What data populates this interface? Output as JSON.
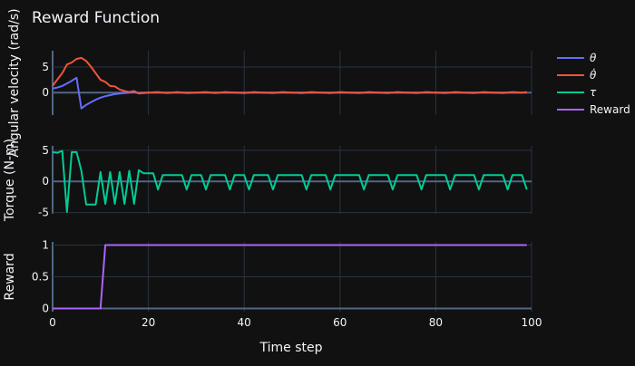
{
  "chart_data": {
    "type": "line",
    "title": "Reward Function",
    "xlabel": "Time step",
    "xlim": [
      0,
      100
    ],
    "x_ticks": [
      0,
      20,
      40,
      60,
      80,
      100
    ],
    "legend_position": "right",
    "legend": [
      {
        "name": "θ",
        "color": "#636efa"
      },
      {
        "name": "θ̇",
        "color": "#EF553B"
      },
      {
        "name": "τ",
        "color": "#00cc96"
      },
      {
        "name": "Reward",
        "color": "#ab63fa"
      }
    ],
    "panels": [
      {
        "ylabel": "Angular velocity (rad/s)",
        "ylim": [
          -4.4,
          8.2
        ],
        "y_ticks": [
          0,
          5
        ],
        "series": [
          {
            "name": "θ",
            "color": "#636efa",
            "points": [
              [
                0,
                0.8
              ],
              [
                1,
                1.0
              ],
              [
                2,
                1.3
              ],
              [
                3,
                1.8
              ],
              [
                4,
                2.3
              ],
              [
                5,
                2.9
              ],
              [
                6,
                -3.1
              ],
              [
                7,
                -2.4
              ],
              [
                8,
                -1.9
              ],
              [
                9,
                -1.4
              ],
              [
                10,
                -1.0
              ],
              [
                11,
                -0.7
              ],
              [
                12,
                -0.5
              ],
              [
                13,
                -0.3
              ],
              [
                14,
                -0.2
              ],
              [
                15,
                -0.1
              ],
              [
                16,
                0.0
              ],
              [
                17,
                0.1
              ],
              [
                18,
                -0.1
              ],
              [
                19,
                0.0
              ],
              [
                20,
                0.0
              ],
              [
                30,
                0.0
              ],
              [
                40,
                0.0
              ],
              [
                50,
                0.0
              ],
              [
                60,
                0.0
              ],
              [
                70,
                0.0
              ],
              [
                80,
                0.0
              ],
              [
                90,
                0.0
              ],
              [
                99,
                0.0
              ]
            ]
          },
          {
            "name": "θ̇",
            "color": "#EF553B",
            "points": [
              [
                0,
                1.3
              ],
              [
                1,
                2.6
              ],
              [
                2,
                3.8
              ],
              [
                3,
                5.5
              ],
              [
                4,
                5.9
              ],
              [
                5,
                6.6
              ],
              [
                6,
                6.8
              ],
              [
                7,
                6.2
              ],
              [
                8,
                5.1
              ],
              [
                9,
                3.8
              ],
              [
                10,
                2.5
              ],
              [
                11,
                2.1
              ],
              [
                12,
                1.3
              ],
              [
                13,
                1.2
              ],
              [
                14,
                0.6
              ],
              [
                15,
                0.3
              ],
              [
                16,
                0.1
              ],
              [
                17,
                0.3
              ],
              [
                18,
                -0.2
              ],
              [
                19,
                -0.1
              ],
              [
                20,
                0.0
              ],
              [
                22,
                0.1
              ],
              [
                24,
                -0.1
              ],
              [
                26,
                0.1
              ],
              [
                28,
                -0.1
              ],
              [
                30,
                0.0
              ],
              [
                32,
                0.1
              ],
              [
                34,
                -0.1
              ],
              [
                36,
                0.1
              ],
              [
                38,
                0.0
              ],
              [
                40,
                -0.1
              ],
              [
                42,
                0.1
              ],
              [
                44,
                0.0
              ],
              [
                46,
                -0.1
              ],
              [
                48,
                0.1
              ],
              [
                50,
                0.0
              ],
              [
                52,
                -0.1
              ],
              [
                54,
                0.1
              ],
              [
                56,
                0.0
              ],
              [
                58,
                -0.1
              ],
              [
                60,
                0.1
              ],
              [
                62,
                0.0
              ],
              [
                64,
                -0.1
              ],
              [
                66,
                0.1
              ],
              [
                68,
                0.0
              ],
              [
                70,
                -0.1
              ],
              [
                72,
                0.1
              ],
              [
                74,
                0.0
              ],
              [
                76,
                -0.1
              ],
              [
                78,
                0.1
              ],
              [
                80,
                0.0
              ],
              [
                82,
                -0.1
              ],
              [
                84,
                0.1
              ],
              [
                86,
                0.0
              ],
              [
                88,
                -0.1
              ],
              [
                90,
                0.1
              ],
              [
                92,
                0.0
              ],
              [
                94,
                -0.1
              ],
              [
                96,
                0.1
              ],
              [
                98,
                0.0
              ],
              [
                99,
                0.1
              ]
            ]
          }
        ]
      },
      {
        "ylabel": "Torque (N-m)",
        "ylim": [
          -5.2,
          5.7
        ],
        "y_ticks": [
          -5,
          0,
          5
        ],
        "series": [
          {
            "name": "τ",
            "color": "#00cc96",
            "points": [
              [
                0,
                4.7
              ],
              [
                1,
                4.6
              ],
              [
                2,
                4.9
              ],
              [
                3,
                -4.9
              ],
              [
                4,
                4.7
              ],
              [
                5,
                4.7
              ],
              [
                6,
                1.7
              ],
              [
                7,
                -3.7
              ],
              [
                8,
                -3.7
              ],
              [
                9,
                -3.7
              ],
              [
                10,
                1.5
              ],
              [
                11,
                -3.6
              ],
              [
                12,
                1.5
              ],
              [
                13,
                -3.6
              ],
              [
                14,
                1.5
              ],
              [
                15,
                -3.6
              ],
              [
                16,
                1.7
              ],
              [
                17,
                -3.6
              ],
              [
                18,
                1.8
              ],
              [
                19,
                1.3
              ],
              [
                20,
                1.3
              ],
              [
                21,
                1.3
              ],
              [
                22,
                -1.3
              ],
              [
                23,
                1.0
              ],
              [
                24,
                1.0
              ],
              [
                25,
                1.0
              ],
              [
                26,
                1.0
              ],
              [
                27,
                1.0
              ],
              [
                28,
                -1.3
              ],
              [
                29,
                1.0
              ],
              [
                30,
                1.0
              ],
              [
                31,
                1.0
              ],
              [
                32,
                -1.3
              ],
              [
                33,
                1.0
              ],
              [
                34,
                1.0
              ],
              [
                35,
                1.0
              ],
              [
                36,
                1.0
              ],
              [
                37,
                -1.3
              ],
              [
                38,
                1.0
              ],
              [
                39,
                1.0
              ],
              [
                40,
                1.0
              ],
              [
                41,
                -1.3
              ],
              [
                42,
                1.0
              ],
              [
                43,
                1.0
              ],
              [
                44,
                1.0
              ],
              [
                45,
                1.0
              ],
              [
                46,
                -1.3
              ],
              [
                47,
                1.0
              ],
              [
                48,
                1.0
              ],
              [
                49,
                1.0
              ],
              [
                50,
                1.0
              ],
              [
                51,
                1.0
              ],
              [
                52,
                1.0
              ],
              [
                53,
                -1.3
              ],
              [
                54,
                1.0
              ],
              [
                55,
                1.0
              ],
              [
                56,
                1.0
              ],
              [
                57,
                1.0
              ],
              [
                58,
                -1.3
              ],
              [
                59,
                1.0
              ],
              [
                60,
                1.0
              ],
              [
                61,
                1.0
              ],
              [
                62,
                1.0
              ],
              [
                63,
                1.0
              ],
              [
                64,
                1.0
              ],
              [
                65,
                -1.3
              ],
              [
                66,
                1.0
              ],
              [
                67,
                1.0
              ],
              [
                68,
                1.0
              ],
              [
                69,
                1.0
              ],
              [
                70,
                1.0
              ],
              [
                71,
                -1.3
              ],
              [
                72,
                1.0
              ],
              [
                73,
                1.0
              ],
              [
                74,
                1.0
              ],
              [
                75,
                1.0
              ],
              [
                76,
                1.0
              ],
              [
                77,
                -1.3
              ],
              [
                78,
                1.0
              ],
              [
                79,
                1.0
              ],
              [
                80,
                1.0
              ],
              [
                81,
                1.0
              ],
              [
                82,
                1.0
              ],
              [
                83,
                -1.3
              ],
              [
                84,
                1.0
              ],
              [
                85,
                1.0
              ],
              [
                86,
                1.0
              ],
              [
                87,
                1.0
              ],
              [
                88,
                1.0
              ],
              [
                89,
                -1.3
              ],
              [
                90,
                1.0
              ],
              [
                91,
                1.0
              ],
              [
                92,
                1.0
              ],
              [
                93,
                1.0
              ],
              [
                94,
                1.0
              ],
              [
                95,
                -1.3
              ],
              [
                96,
                1.0
              ],
              [
                97,
                1.0
              ],
              [
                98,
                1.0
              ],
              [
                99,
                -1.3
              ]
            ]
          }
        ]
      },
      {
        "ylabel": "Reward",
        "ylim": [
          -0.05,
          1.05
        ],
        "y_ticks": [
          0,
          0.5,
          1
        ],
        "series": [
          {
            "name": "Reward",
            "color": "#ab63fa",
            "points": [
              [
                0,
                0
              ],
              [
                10,
                0
              ],
              [
                11,
                1
              ],
              [
                99,
                1
              ]
            ]
          }
        ]
      }
    ]
  }
}
